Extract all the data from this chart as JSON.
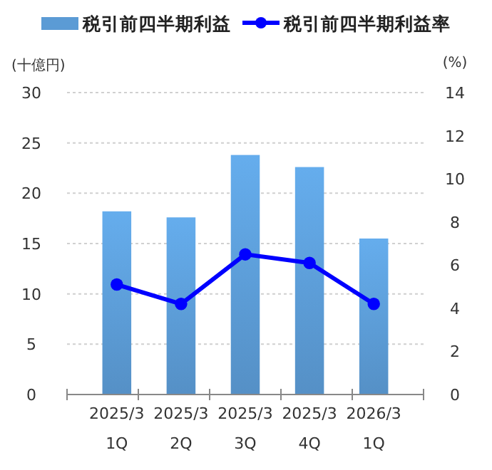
{
  "chart_data": {
    "type": "bar",
    "ylabel": "(十億円)",
    "y2label": "(%)",
    "categories": [
      "2025/3\n1Q",
      "2025/3\n2Q",
      "2025/3\n3Q",
      "2025/3\n4Q",
      "2026/3\n1Q"
    ],
    "series": [
      {
        "name": "税引前四半期利益",
        "color": "#5b9bd5",
        "values": [
          18.2,
          17.6,
          23.8,
          22.6,
          15.5
        ]
      },
      {
        "name": "税引前四半期利益率",
        "type": "line",
        "axis": "y2",
        "color": "#0000ff",
        "values": [
          5.1,
          4.2,
          6.5,
          6.1,
          4.2
        ]
      }
    ],
    "ylim": [
      0,
      30
    ],
    "yticks": [
      0,
      5,
      10,
      15,
      20,
      25,
      30
    ],
    "y2lim": [
      0,
      14
    ],
    "y2ticks": [
      0,
      2,
      4,
      6,
      8,
      10,
      12,
      14
    ],
    "grid": "y",
    "legend": "top",
    "marker": "circle",
    "line_style": "solid"
  }
}
